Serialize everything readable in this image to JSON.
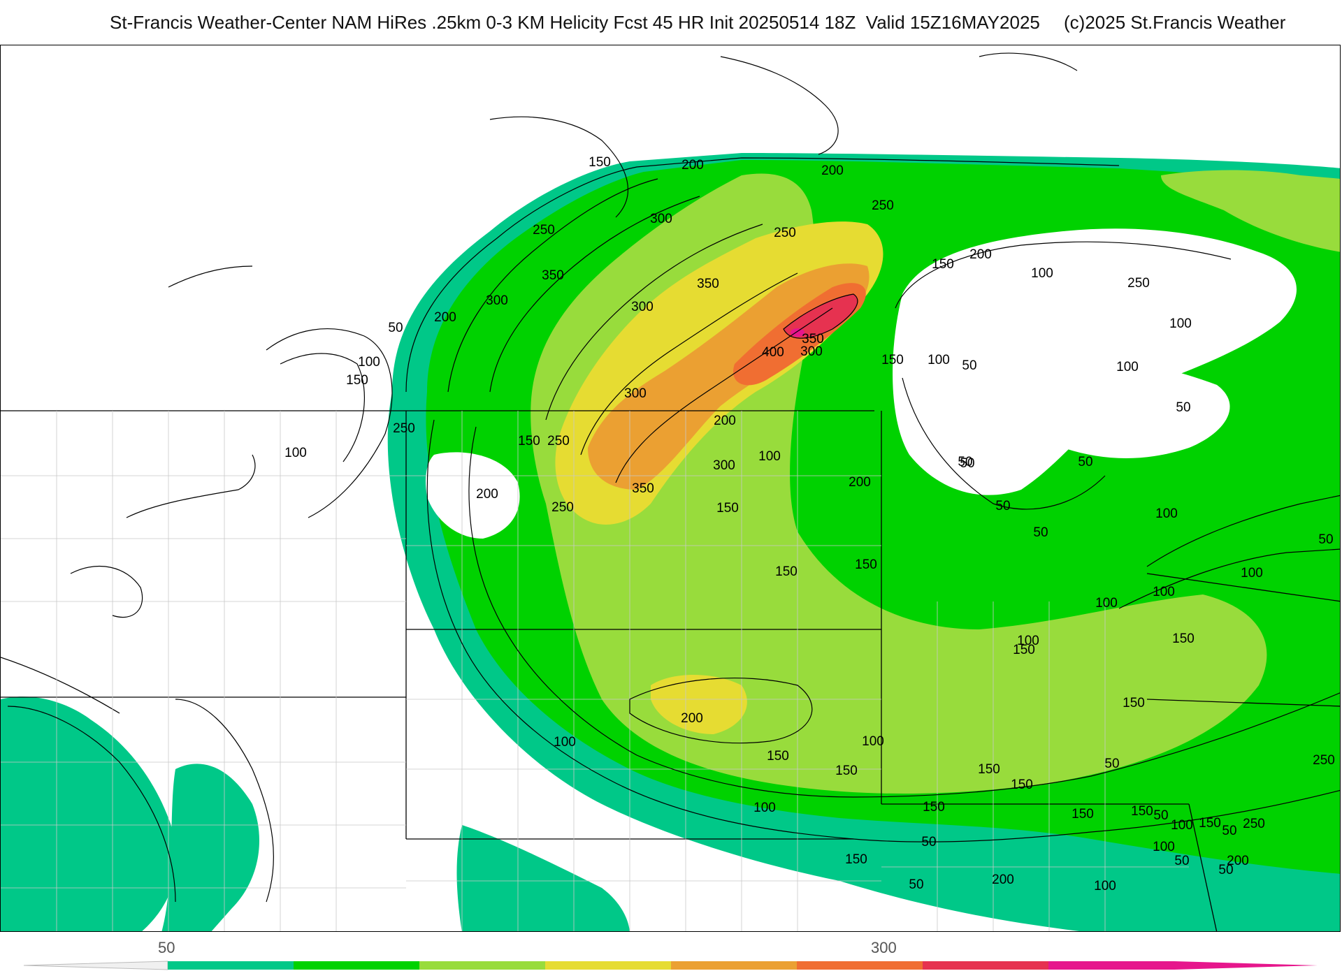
{
  "header": {
    "title": "St-Francis Weather-Center NAM HiRes .25km 0-3 KM Helicity Fcst 45 HR Init 20250514 18Z  Valid 15Z16MAY2025",
    "credit": "(c)2025 St.Francis Weather"
  },
  "colorbar": {
    "tick_labels": [
      "50",
      "300"
    ],
    "colors": [
      "#00c888",
      "#00d200",
      "#98dc3c",
      "#e6dc32",
      "#eba032",
      "#f06e32",
      "#e63250",
      "#e6168c"
    ]
  },
  "map": {
    "contour_labels": [
      {
        "value": "150"
      },
      {
        "value": "200"
      },
      {
        "value": "200"
      },
      {
        "value": "300"
      },
      {
        "value": "250"
      },
      {
        "value": "250"
      },
      {
        "value": "250"
      },
      {
        "value": "150"
      },
      {
        "value": "200"
      },
      {
        "value": "350"
      },
      {
        "value": "350"
      },
      {
        "value": "300"
      },
      {
        "value": "300"
      },
      {
        "value": "50"
      },
      {
        "value": "200"
      },
      {
        "value": "100"
      },
      {
        "value": "150"
      },
      {
        "value": "400"
      },
      {
        "value": "300"
      },
      {
        "value": "350"
      },
      {
        "value": "150"
      },
      {
        "value": "100"
      },
      {
        "value": "50"
      },
      {
        "value": "100"
      },
      {
        "value": "100"
      },
      {
        "value": "100"
      },
      {
        "value": "50"
      },
      {
        "value": "250"
      },
      {
        "value": "250"
      },
      {
        "value": "300"
      },
      {
        "value": "300"
      },
      {
        "value": "250"
      },
      {
        "value": "150"
      },
      {
        "value": "100"
      },
      {
        "value": "50"
      },
      {
        "value": "200"
      },
      {
        "value": "100"
      },
      {
        "value": "200"
      },
      {
        "value": "350"
      },
      {
        "value": "200"
      },
      {
        "value": "150"
      },
      {
        "value": "250"
      },
      {
        "value": "50"
      },
      {
        "value": "50"
      },
      {
        "value": "50"
      },
      {
        "value": "50"
      },
      {
        "value": "100"
      },
      {
        "value": "50"
      },
      {
        "value": "150"
      },
      {
        "value": "150"
      },
      {
        "value": "150"
      },
      {
        "value": "150"
      },
      {
        "value": "100"
      },
      {
        "value": "100"
      },
      {
        "value": "150"
      },
      {
        "value": "200"
      },
      {
        "value": "150"
      },
      {
        "value": "150"
      },
      {
        "value": "50"
      },
      {
        "value": "200"
      },
      {
        "value": "50"
      },
      {
        "value": "100"
      },
      {
        "value": "150"
      },
      {
        "value": "150"
      },
      {
        "value": "150"
      },
      {
        "value": "150"
      },
      {
        "value": "100"
      },
      {
        "value": "50"
      },
      {
        "value": "50"
      },
      {
        "value": "100"
      },
      {
        "value": "100"
      },
      {
        "value": "100"
      },
      {
        "value": "50"
      },
      {
        "value": "150"
      },
      {
        "value": "50"
      },
      {
        "value": "150"
      },
      {
        "value": "100"
      },
      {
        "value": "250"
      },
      {
        "value": "250"
      },
      {
        "value": "100"
      },
      {
        "value": "150"
      },
      {
        "value": "100"
      },
      {
        "value": "200"
      },
      {
        "value": "50"
      }
    ]
  }
}
